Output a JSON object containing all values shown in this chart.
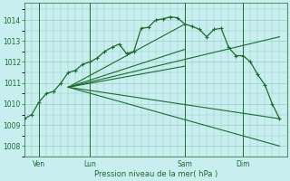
{
  "background_color": "#c8eef0",
  "grid_color": "#90c8b8",
  "line_color": "#1a6e2a",
  "xlabel": "Pression niveau de la mer( hPa )",
  "ylim": [
    1007.5,
    1014.8
  ],
  "yticks": [
    1008,
    1009,
    1010,
    1011,
    1012,
    1013,
    1014
  ],
  "xlim": [
    0,
    36
  ],
  "day_labels": [
    "Ven",
    "Lun",
    "Sam",
    "Dim"
  ],
  "day_positions": [
    2,
    9,
    22,
    30
  ],
  "vline_positions": [
    2,
    9,
    22,
    30
  ],
  "main_line": {
    "x": [
      0,
      1,
      2,
      3,
      4,
      5,
      6,
      7,
      8,
      9,
      10,
      11,
      12,
      13,
      14,
      15,
      16,
      17,
      18,
      19,
      20,
      21,
      22,
      23,
      24,
      25,
      26,
      27,
      28,
      29,
      30,
      31,
      32,
      33,
      34,
      35
    ],
    "y": [
      1009.3,
      1009.5,
      1010.1,
      1010.5,
      1010.6,
      1011.0,
      1011.5,
      1011.6,
      1011.9,
      1012.0,
      1012.2,
      1012.5,
      1012.7,
      1012.85,
      1012.4,
      1012.5,
      1013.6,
      1013.65,
      1014.0,
      1014.05,
      1014.15,
      1014.1,
      1013.8,
      1013.7,
      1013.55,
      1013.2,
      1013.55,
      1013.6,
      1012.7,
      1012.3,
      1012.3,
      1012.0,
      1011.4,
      1010.9,
      1010.0,
      1009.3
    ]
  },
  "fan_lines": [
    {
      "x": [
        6,
        22
      ],
      "y": [
        1010.8,
        1013.8
      ],
      "dashed": false
    },
    {
      "x": [
        6,
        22
      ],
      "y": [
        1010.8,
        1012.6
      ],
      "dashed": false
    },
    {
      "x": [
        6,
        22
      ],
      "y": [
        1010.8,
        1011.8
      ],
      "dashed": false
    },
    {
      "x": [
        6,
        35
      ],
      "y": [
        1010.8,
        1013.2
      ],
      "dashed": false
    },
    {
      "x": [
        6,
        35
      ],
      "y": [
        1010.8,
        1009.3
      ],
      "dashed": false
    },
    {
      "x": [
        6,
        35
      ],
      "y": [
        1010.8,
        1008.0
      ],
      "dashed": false
    }
  ]
}
